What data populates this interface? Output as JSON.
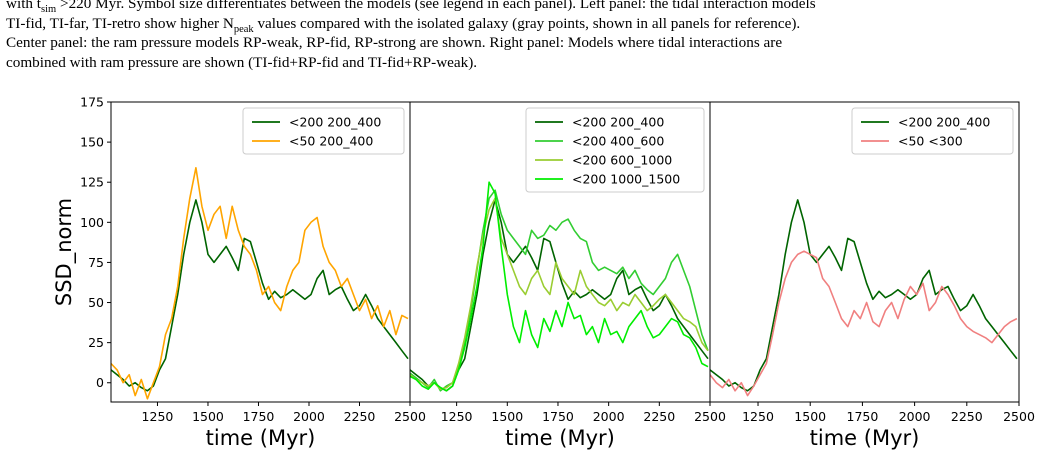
{
  "caption": {
    "l1_a": "with t",
    "l1_sub1": "sim",
    "l1_b": " >220 Myr. Symbol size differentiates between the models (see legend in each panel). Left panel: the tidal interaction models",
    "l2_a": "TI-fid, TI-far, TI-retro show higher N",
    "l2_sub1": "peak",
    "l2_b": " values compared with the isolated galaxy (gray points, shown in all panels for reference).",
    "l3": "Center panel: the ram pressure models RP-weak, RP-fid, RP-strong are shown. Right panel: Models where tidal interactions are",
    "l4": "combined with ram pressure are shown (TI-fid+RP-fid and TI-fid+RP-weak)."
  },
  "chart_data": [
    {
      "type": "line",
      "title": "",
      "xlabel": "time (Myr)",
      "ylabel": "SSD_norm",
      "xlim": [
        1020,
        2500
      ],
      "ylim": [
        -12,
        175
      ],
      "xticks": [
        1250,
        1500,
        1750,
        2000,
        2250,
        2500
      ],
      "yticks": [
        0,
        25,
        50,
        75,
        100,
        125,
        150,
        175
      ],
      "legend_position": "top-right",
      "grid": false,
      "series": [
        {
          "name": "<200 200_400",
          "color": "#006400",
          "x": [
            1020,
            1050,
            1080,
            1110,
            1140,
            1170,
            1200,
            1230,
            1260,
            1290,
            1320,
            1350,
            1380,
            1410,
            1440,
            1470,
            1500,
            1530,
            1560,
            1590,
            1620,
            1650,
            1680,
            1710,
            1740,
            1770,
            1800,
            1830,
            1860,
            1890,
            1920,
            1950,
            1980,
            2010,
            2040,
            2070,
            2100,
            2130,
            2160,
            2190,
            2220,
            2250,
            2280,
            2310,
            2340,
            2370,
            2400,
            2430,
            2460,
            2490
          ],
          "y": [
            8,
            5,
            2,
            -2,
            0,
            -3,
            -5,
            -2,
            8,
            15,
            35,
            55,
            80,
            100,
            114,
            100,
            80,
            75,
            80,
            85,
            78,
            70,
            90,
            88,
            75,
            62,
            52,
            57,
            53,
            55,
            58,
            55,
            52,
            55,
            65,
            70,
            55,
            58,
            60,
            52,
            45,
            48,
            55,
            48,
            40,
            35,
            30,
            25,
            20,
            15
          ]
        },
        {
          "name": "<50 200_400",
          "color": "#FFA500",
          "x": [
            1020,
            1050,
            1080,
            1110,
            1140,
            1170,
            1200,
            1230,
            1260,
            1290,
            1320,
            1350,
            1380,
            1410,
            1440,
            1470,
            1500,
            1530,
            1560,
            1590,
            1620,
            1650,
            1680,
            1710,
            1740,
            1770,
            1800,
            1830,
            1860,
            1890,
            1920,
            1950,
            1980,
            2010,
            2040,
            2070,
            2100,
            2130,
            2160,
            2190,
            2220,
            2250,
            2280,
            2310,
            2340,
            2370,
            2400,
            2430,
            2460,
            2490
          ],
          "y": [
            12,
            8,
            0,
            5,
            -8,
            2,
            -10,
            0,
            10,
            30,
            40,
            60,
            90,
            115,
            134,
            110,
            95,
            105,
            110,
            90,
            110,
            95,
            85,
            80,
            70,
            55,
            60,
            50,
            45,
            60,
            70,
            75,
            95,
            100,
            103,
            85,
            75,
            70,
            60,
            65,
            55,
            45,
            52,
            40,
            48,
            35,
            45,
            30,
            42,
            40
          ]
        }
      ]
    },
    {
      "type": "line",
      "title": "",
      "xlabel": "time (Myr)",
      "ylabel": "",
      "xlim": [
        1020,
        2500
      ],
      "ylim": [
        -12,
        175
      ],
      "xticks": [
        1250,
        1500,
        1750,
        2000,
        2250,
        2500
      ],
      "yticks": [],
      "legend_position": "top-right",
      "grid": false,
      "series": [
        {
          "name": "<200 200_400",
          "color": "#006400",
          "x": [
            1020,
            1050,
            1080,
            1110,
            1140,
            1170,
            1200,
            1230,
            1260,
            1290,
            1320,
            1350,
            1380,
            1410,
            1440,
            1470,
            1500,
            1530,
            1560,
            1590,
            1620,
            1650,
            1680,
            1710,
            1740,
            1770,
            1800,
            1830,
            1860,
            1890,
            1920,
            1950,
            1980,
            2010,
            2040,
            2070,
            2100,
            2130,
            2160,
            2190,
            2220,
            2250,
            2280,
            2310,
            2340,
            2370,
            2400,
            2430,
            2460,
            2490
          ],
          "y": [
            8,
            5,
            2,
            -2,
            0,
            -3,
            -5,
            -2,
            8,
            15,
            35,
            55,
            80,
            100,
            114,
            100,
            80,
            75,
            80,
            85,
            78,
            70,
            90,
            88,
            75,
            62,
            52,
            57,
            53,
            55,
            58,
            55,
            52,
            55,
            65,
            70,
            55,
            58,
            60,
            52,
            45,
            48,
            55,
            48,
            40,
            35,
            30,
            25,
            20,
            15
          ]
        },
        {
          "name": "<200 400_600",
          "color": "#32CD32",
          "x": [
            1020,
            1050,
            1080,
            1110,
            1140,
            1170,
            1200,
            1230,
            1260,
            1290,
            1320,
            1350,
            1380,
            1410,
            1440,
            1470,
            1500,
            1530,
            1560,
            1590,
            1620,
            1650,
            1680,
            1710,
            1740,
            1770,
            1800,
            1830,
            1860,
            1890,
            1920,
            1950,
            1980,
            2010,
            2040,
            2070,
            2100,
            2130,
            2160,
            2190,
            2220,
            2250,
            2280,
            2310,
            2340,
            2370,
            2400,
            2430,
            2460,
            2490
          ],
          "y": [
            6,
            3,
            0,
            -3,
            2,
            -5,
            -2,
            0,
            10,
            25,
            45,
            70,
            95,
            115,
            120,
            105,
            95,
            90,
            85,
            80,
            95,
            90,
            92,
            98,
            95,
            100,
            102,
            95,
            90,
            88,
            75,
            70,
            72,
            70,
            68,
            72,
            65,
            70,
            62,
            58,
            55,
            60,
            65,
            75,
            80,
            70,
            60,
            45,
            30,
            20
          ]
        },
        {
          "name": "<200 600_1000",
          "color": "#9ACD32",
          "x": [
            1020,
            1050,
            1080,
            1110,
            1140,
            1170,
            1200,
            1230,
            1260,
            1290,
            1320,
            1350,
            1380,
            1410,
            1440,
            1470,
            1500,
            1530,
            1560,
            1590,
            1620,
            1650,
            1680,
            1710,
            1740,
            1770,
            1800,
            1830,
            1860,
            1890,
            1920,
            1950,
            1980,
            2010,
            2040,
            2070,
            2100,
            2130,
            2160,
            2190,
            2220,
            2250,
            2280,
            2310,
            2340,
            2370,
            2400,
            2430,
            2460,
            2490
          ],
          "y": [
            5,
            2,
            0,
            -2,
            0,
            -4,
            -3,
            0,
            12,
            28,
            48,
            72,
            92,
            108,
            115,
            90,
            80,
            70,
            60,
            55,
            65,
            70,
            60,
            55,
            75,
            65,
            60,
            55,
            70,
            60,
            55,
            50,
            48,
            52,
            45,
            50,
            48,
            55,
            50,
            45,
            48,
            52,
            55,
            50,
            45,
            40,
            38,
            35,
            25,
            20
          ]
        },
        {
          "name": "<200 1000_1500",
          "color": "#00EE00",
          "x": [
            1020,
            1050,
            1080,
            1110,
            1140,
            1170,
            1200,
            1230,
            1260,
            1290,
            1320,
            1350,
            1380,
            1410,
            1440,
            1470,
            1500,
            1530,
            1560,
            1590,
            1620,
            1650,
            1680,
            1710,
            1740,
            1770,
            1800,
            1830,
            1860,
            1890,
            1920,
            1950,
            1980,
            2010,
            2040,
            2070,
            2100,
            2130,
            2160,
            2190,
            2220,
            2250,
            2280,
            2310,
            2340,
            2370,
            2400,
            2430,
            2460,
            2490
          ],
          "y": [
            4,
            2,
            -2,
            -4,
            0,
            -3,
            -5,
            -2,
            8,
            22,
            40,
            60,
            85,
            125,
            118,
            85,
            55,
            35,
            25,
            45,
            30,
            22,
            40,
            32,
            45,
            35,
            50,
            40,
            42,
            30,
            35,
            25,
            40,
            30,
            32,
            25,
            35,
            40,
            45,
            35,
            28,
            30,
            35,
            40,
            38,
            30,
            28,
            22,
            12,
            10
          ]
        }
      ]
    },
    {
      "type": "line",
      "title": "",
      "xlabel": "time (Myr)",
      "ylabel": "",
      "xlim": [
        1020,
        2500
      ],
      "ylim": [
        -12,
        175
      ],
      "xticks": [
        1250,
        1500,
        1750,
        2000,
        2250,
        2500
      ],
      "yticks": [],
      "legend_position": "top-right",
      "grid": false,
      "series": [
        {
          "name": "<200 200_400",
          "color": "#006400",
          "x": [
            1020,
            1050,
            1080,
            1110,
            1140,
            1170,
            1200,
            1230,
            1260,
            1290,
            1320,
            1350,
            1380,
            1410,
            1440,
            1470,
            1500,
            1530,
            1560,
            1590,
            1620,
            1650,
            1680,
            1710,
            1740,
            1770,
            1800,
            1830,
            1860,
            1890,
            1920,
            1950,
            1980,
            2010,
            2040,
            2070,
            2100,
            2130,
            2160,
            2190,
            2220,
            2250,
            2280,
            2310,
            2340,
            2370,
            2400,
            2430,
            2460,
            2490
          ],
          "y": [
            8,
            5,
            2,
            -2,
            0,
            -3,
            -5,
            -2,
            8,
            15,
            35,
            55,
            80,
            100,
            114,
            100,
            80,
            75,
            80,
            85,
            78,
            70,
            90,
            88,
            75,
            62,
            52,
            57,
            53,
            55,
            58,
            55,
            52,
            55,
            65,
            70,
            55,
            58,
            60,
            52,
            45,
            48,
            55,
            48,
            40,
            35,
            30,
            25,
            20,
            15
          ]
        },
        {
          "name": "<50 <300",
          "color": "#F08080",
          "x": [
            1020,
            1050,
            1080,
            1110,
            1140,
            1170,
            1200,
            1230,
            1260,
            1290,
            1320,
            1350,
            1380,
            1410,
            1440,
            1470,
            1500,
            1530,
            1560,
            1590,
            1620,
            1650,
            1680,
            1710,
            1740,
            1770,
            1800,
            1830,
            1860,
            1890,
            1920,
            1950,
            1980,
            2010,
            2040,
            2070,
            2100,
            2130,
            2160,
            2190,
            2220,
            2250,
            2280,
            2310,
            2340,
            2370,
            2400,
            2430,
            2460,
            2490
          ],
          "y": [
            5,
            0,
            -3,
            2,
            -5,
            0,
            -8,
            -2,
            5,
            12,
            30,
            50,
            65,
            75,
            80,
            82,
            80,
            78,
            65,
            60,
            50,
            40,
            35,
            45,
            40,
            50,
            38,
            35,
            45,
            50,
            40,
            52,
            60,
            55,
            62,
            45,
            50,
            60,
            55,
            48,
            40,
            35,
            32,
            30,
            28,
            25,
            30,
            35,
            38,
            40
          ]
        }
      ]
    }
  ]
}
